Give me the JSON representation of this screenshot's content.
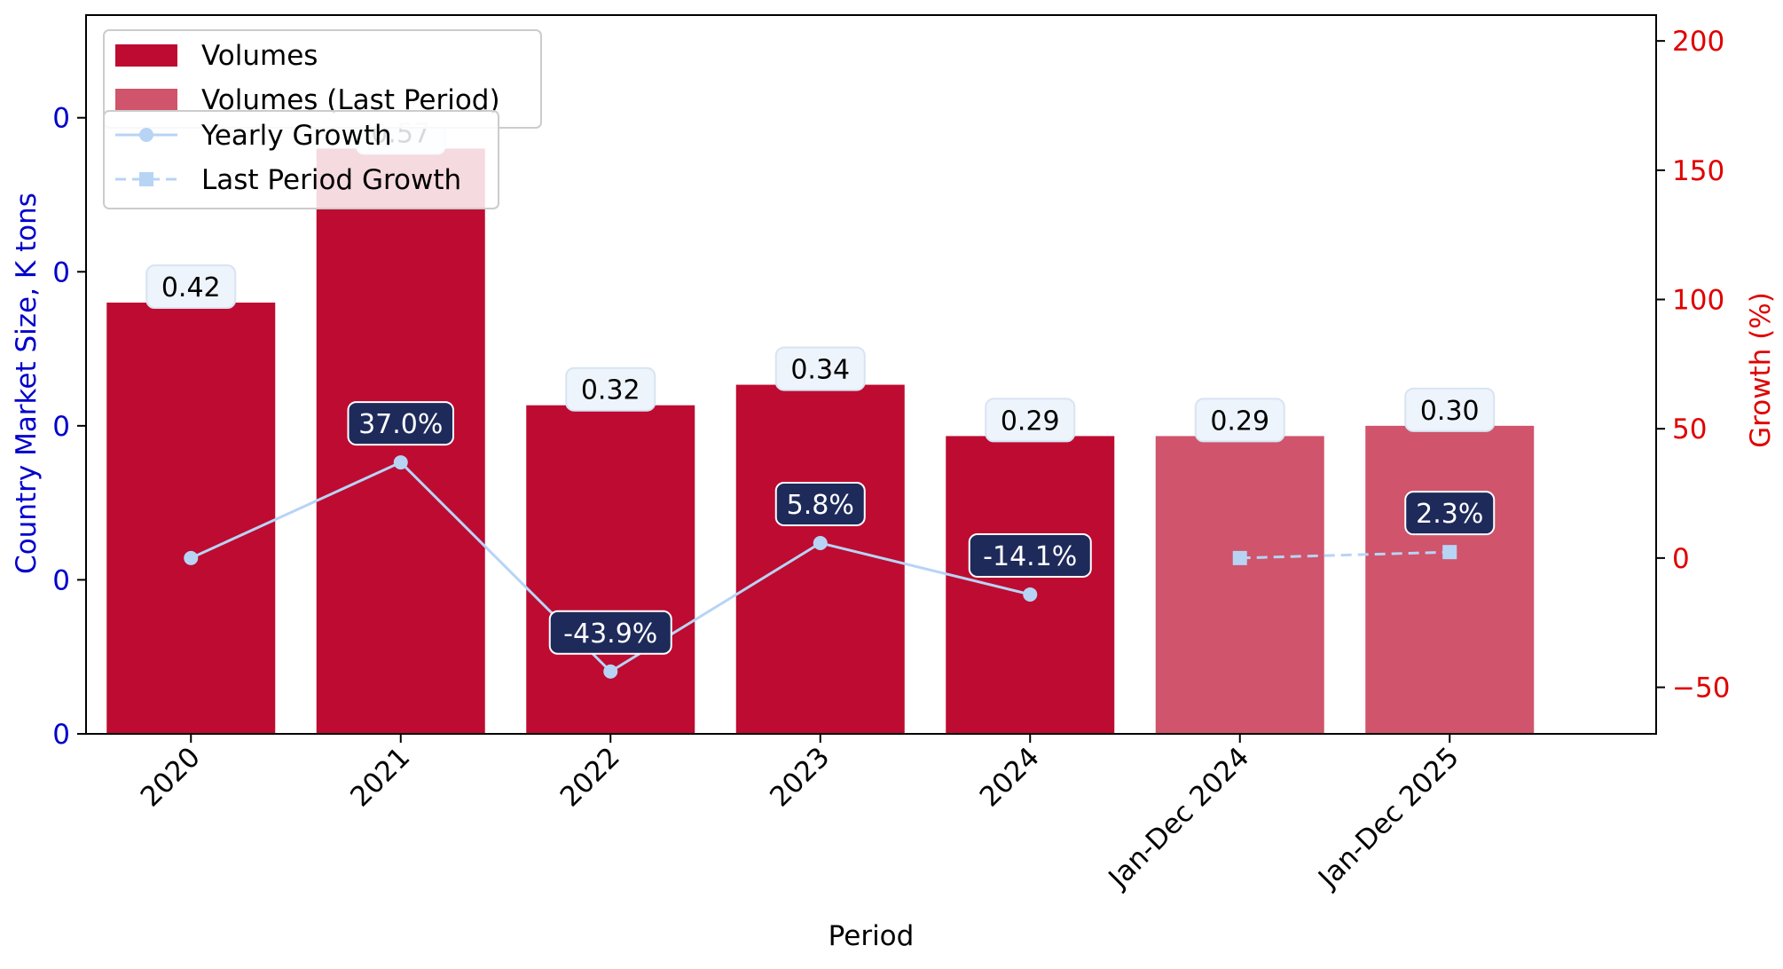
{
  "chart_data": {
    "type": "bar",
    "categories": [
      "2020",
      "2021",
      "2022",
      "2023",
      "2024",
      "Jan-Dec 2024",
      "Jan-Dec 2025"
    ],
    "xlabel": "Period",
    "ylabel_left": "Country Market Size, K tons",
    "ylabel_right": "Growth (%)",
    "left_tick_labels": [
      "0",
      "0",
      "0",
      "0",
      "0"
    ],
    "left_ylim": [
      0,
      0.7
    ],
    "left_tick_values": [
      0,
      0.15,
      0.3,
      0.45,
      0.6
    ],
    "right_ylim": [
      -68,
      210
    ],
    "right_ticks": [
      -50,
      0,
      50,
      100,
      150,
      200
    ],
    "series": [
      {
        "name": "Volumes",
        "kind": "bar",
        "axis": "left",
        "color": "#BE0B31",
        "x": [
          "2020",
          "2021",
          "2022",
          "2023",
          "2024"
        ],
        "values": [
          0.42,
          0.57,
          0.32,
          0.34,
          0.29
        ],
        "labels": [
          "0.42",
          "0.57",
          "0.32",
          "0.34",
          "0.29"
        ]
      },
      {
        "name": "Volumes (Last Period)",
        "kind": "bar",
        "axis": "left",
        "color": "#D0546B",
        "x": [
          "Jan-Dec 2024",
          "Jan-Dec 2025"
        ],
        "values": [
          0.29,
          0.3
        ],
        "labels": [
          "0.29",
          "0.30"
        ]
      },
      {
        "name": "Yearly Growth",
        "kind": "line",
        "axis": "right",
        "color": "#B7D4F5",
        "marker": "circle",
        "x": [
          "2020",
          "2021",
          "2022",
          "2023",
          "2024"
        ],
        "values": [
          0,
          37.0,
          -43.9,
          5.8,
          -14.1
        ],
        "labels": [
          "",
          "37.0%",
          "-43.9%",
          "5.8%",
          "-14.1%"
        ]
      },
      {
        "name": "Last Period Growth",
        "kind": "line",
        "axis": "right",
        "color": "#B7D4F5",
        "marker": "square",
        "dashed": true,
        "x": [
          "Jan-Dec 2024",
          "Jan-Dec 2025"
        ],
        "values": [
          0,
          2.3
        ],
        "labels": [
          "",
          "2.3%"
        ]
      }
    ],
    "legend_placement": "top-left",
    "grid": false,
    "colors": {
      "left_axis": "#0000CC",
      "right_axis": "#E00000",
      "growth_label_bg": "#1E2A5A",
      "value_label_bg": "#EEF4FB"
    }
  }
}
